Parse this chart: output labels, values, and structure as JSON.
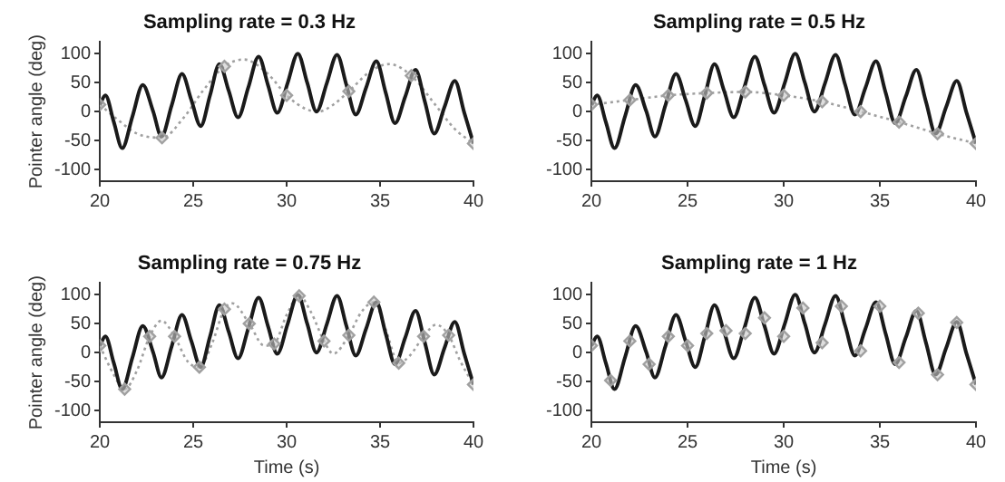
{
  "chart_data": [
    {
      "type": "line",
      "title": "Sampling rate = 0.3 Hz",
      "ylabel": "Pointer angle (deg)",
      "xlim": [
        20,
        40
      ],
      "xticks": [
        20,
        25,
        30,
        35,
        40
      ],
      "ylim": [
        -120,
        120
      ],
      "yticks": [
        -100,
        -50,
        0,
        50,
        100
      ],
      "grid": false,
      "legend": false,
      "series": [
        {
          "type": "line",
          "color": "#1a1a1a",
          "line_style": "solid",
          "marker": "none",
          "x": [
            20,
            20.3,
            20.75,
            21.2,
            21.75,
            22.3,
            22.85,
            23.3,
            23.85,
            24.4,
            24.9,
            25.4,
            25.9,
            26.4,
            26.9,
            27.4,
            27.95,
            28.5,
            29,
            29.5,
            30.05,
            30.6,
            31.1,
            31.6,
            32.15,
            32.7,
            33.2,
            33.7,
            34.25,
            34.8,
            35.3,
            35.8,
            36.35,
            36.9,
            37.4,
            37.9,
            38.45,
            39,
            39.5,
            40
          ],
          "values": [
            12,
            28,
            -18,
            -63,
            -8,
            46,
            1,
            -43,
            11,
            65,
            20,
            -25,
            28,
            82,
            36,
            -10,
            42,
            95,
            46,
            -2,
            49,
            100,
            50,
            0,
            49,
            98,
            46,
            -5,
            41,
            87,
            33,
            -20,
            26,
            72,
            17,
            -38,
            8,
            53,
            -1,
            -55
          ]
        },
        {
          "type": "line",
          "color": "#a0a0a0",
          "line_style": "dotted",
          "marker": "none",
          "x": [
            20,
            21,
            22,
            23.33,
            24.5,
            25.5,
            26.67,
            27.7,
            29,
            30,
            31,
            31.7,
            32.5,
            33.33,
            34.5,
            35.5,
            36.67,
            38,
            39,
            40
          ],
          "values": [
            12,
            -15,
            -38,
            -45,
            -10,
            35,
            78,
            90,
            65,
            28,
            5,
            0,
            12,
            35,
            70,
            82,
            62,
            10,
            -30,
            -55
          ]
        },
        {
          "type": "scatter",
          "color": "#a0a0a0",
          "marker": "diamond",
          "x": [
            20,
            23.33,
            26.67,
            30,
            33.33,
            36.67,
            40
          ],
          "values": [
            12,
            -45,
            78,
            28,
            35,
            62,
            -55
          ]
        }
      ]
    },
    {
      "type": "line",
      "title": "Sampling rate = 0.5 Hz",
      "xlim": [
        20,
        40
      ],
      "xticks": [
        20,
        25,
        30,
        35,
        40
      ],
      "ylim": [
        -120,
        120
      ],
      "yticks": [
        -100,
        -50,
        0,
        50,
        100
      ],
      "grid": false,
      "legend": false,
      "series": [
        {
          "type": "line",
          "color": "#1a1a1a",
          "line_style": "solid",
          "marker": "none",
          "x": [
            20,
            20.3,
            20.75,
            21.2,
            21.75,
            22.3,
            22.85,
            23.3,
            23.85,
            24.4,
            24.9,
            25.4,
            25.9,
            26.4,
            26.9,
            27.4,
            27.95,
            28.5,
            29,
            29.5,
            30.05,
            30.6,
            31.1,
            31.6,
            32.15,
            32.7,
            33.2,
            33.7,
            34.25,
            34.8,
            35.3,
            35.8,
            36.35,
            36.9,
            37.4,
            37.9,
            38.45,
            39,
            39.5,
            40
          ],
          "values": [
            12,
            28,
            -18,
            -63,
            -8,
            46,
            1,
            -43,
            11,
            65,
            20,
            -25,
            28,
            82,
            36,
            -10,
            42,
            95,
            46,
            -2,
            49,
            100,
            50,
            0,
            49,
            98,
            46,
            -5,
            41,
            87,
            33,
            -20,
            26,
            72,
            17,
            -38,
            8,
            53,
            -1,
            -55
          ]
        },
        {
          "type": "line",
          "color": "#a0a0a0",
          "line_style": "dotted",
          "marker": "none",
          "x": [
            20,
            22,
            24,
            26,
            28,
            30,
            32,
            34,
            36,
            38,
            40
          ],
          "values": [
            12,
            20,
            28,
            32,
            34,
            28,
            17,
            0,
            -18,
            -38,
            -55
          ]
        },
        {
          "type": "scatter",
          "color": "#a0a0a0",
          "marker": "diamond",
          "x": [
            20,
            22,
            24,
            26,
            28,
            30,
            32,
            34,
            36,
            38,
            40
          ],
          "values": [
            12,
            20,
            28,
            32,
            34,
            28,
            17,
            0,
            -18,
            -38,
            -55
          ]
        }
      ]
    },
    {
      "type": "line",
      "title": "Sampling rate = 0.75 Hz",
      "xlabel": "Time (s)",
      "ylabel": "Pointer angle (deg)",
      "xlim": [
        20,
        40
      ],
      "xticks": [
        20,
        25,
        30,
        35,
        40
      ],
      "ylim": [
        -120,
        120
      ],
      "yticks": [
        -100,
        -50,
        0,
        50,
        100
      ],
      "grid": false,
      "legend": false,
      "series": [
        {
          "type": "line",
          "color": "#1a1a1a",
          "line_style": "solid",
          "marker": "none",
          "x": [
            20,
            20.3,
            20.75,
            21.2,
            21.75,
            22.3,
            22.85,
            23.3,
            23.85,
            24.4,
            24.9,
            25.4,
            25.9,
            26.4,
            26.9,
            27.4,
            27.95,
            28.5,
            29,
            29.5,
            30.05,
            30.6,
            31.1,
            31.6,
            32.15,
            32.7,
            33.2,
            33.7,
            34.25,
            34.8,
            35.3,
            35.8,
            36.35,
            36.9,
            37.4,
            37.9,
            38.45,
            39,
            39.5,
            40
          ],
          "values": [
            12,
            28,
            -18,
            -63,
            -8,
            46,
            1,
            -43,
            11,
            65,
            20,
            -25,
            28,
            82,
            36,
            -10,
            42,
            95,
            46,
            -2,
            49,
            100,
            50,
            0,
            49,
            98,
            46,
            -5,
            41,
            87,
            33,
            -20,
            26,
            72,
            17,
            -38,
            8,
            53,
            -1,
            -55
          ]
        },
        {
          "type": "line",
          "color": "#a0a0a0",
          "line_style": "dotted",
          "marker": "none",
          "x": [
            20,
            20.7,
            21.33,
            22,
            22.67,
            23.3,
            24,
            24.7,
            25.33,
            26,
            26.67,
            27.1,
            28,
            28.8,
            29.33,
            30,
            30.67,
            31.3,
            32,
            32.5,
            33.33,
            34,
            34.67,
            35.3,
            36,
            36.6,
            37.33,
            38,
            38.67,
            39.3,
            40
          ],
          "values": [
            12,
            -35,
            -63,
            -30,
            28,
            55,
            28,
            -15,
            -25,
            15,
            75,
            85,
            50,
            12,
            15,
            65,
            98,
            70,
            20,
            -2,
            30,
            70,
            87,
            40,
            -18,
            -5,
            28,
            48,
            30,
            -15,
            -55
          ]
        },
        {
          "type": "scatter",
          "color": "#a0a0a0",
          "marker": "diamond",
          "x": [
            20,
            21.33,
            22.67,
            24,
            25.33,
            26.67,
            28,
            29.33,
            30.67,
            32,
            33.33,
            34.67,
            36,
            37.33,
            38.67,
            40
          ],
          "values": [
            12,
            -63,
            28,
            28,
            -25,
            75,
            50,
            15,
            98,
            20,
            30,
            87,
            -18,
            28,
            30,
            -55
          ]
        }
      ]
    },
    {
      "type": "line",
      "title": "Sampling rate = 1 Hz",
      "xlabel": "Time (s)",
      "xlim": [
        20,
        40
      ],
      "xticks": [
        20,
        25,
        30,
        35,
        40
      ],
      "ylim": [
        -120,
        120
      ],
      "yticks": [
        -100,
        -50,
        0,
        50,
        100
      ],
      "grid": false,
      "legend": false,
      "series": [
        {
          "type": "line",
          "color": "#1a1a1a",
          "line_style": "solid",
          "marker": "none",
          "x": [
            20,
            20.3,
            20.75,
            21.2,
            21.75,
            22.3,
            22.85,
            23.3,
            23.85,
            24.4,
            24.9,
            25.4,
            25.9,
            26.4,
            26.9,
            27.4,
            27.95,
            28.5,
            29,
            29.5,
            30.05,
            30.6,
            31.1,
            31.6,
            32.15,
            32.7,
            33.2,
            33.7,
            34.25,
            34.8,
            35.3,
            35.8,
            36.35,
            36.9,
            37.4,
            37.9,
            38.45,
            39,
            39.5,
            40
          ],
          "values": [
            12,
            28,
            -18,
            -63,
            -8,
            46,
            1,
            -43,
            11,
            65,
            20,
            -25,
            28,
            82,
            36,
            -10,
            42,
            95,
            46,
            -2,
            49,
            100,
            50,
            0,
            49,
            98,
            46,
            -5,
            41,
            87,
            33,
            -20,
            26,
            72,
            17,
            -38,
            8,
            53,
            -1,
            -55
          ]
        },
        {
          "type": "scatter",
          "color": "#a0a0a0",
          "marker": "diamond",
          "x": [
            20,
            21,
            22,
            23,
            24,
            25,
            26,
            27,
            28,
            29,
            30,
            31,
            32,
            33,
            34,
            35,
            36,
            37,
            38,
            39,
            40
          ],
          "values": [
            12,
            -48,
            20,
            -20,
            28,
            12,
            33,
            38,
            33,
            60,
            28,
            77,
            17,
            80,
            3,
            80,
            -17,
            68,
            -38,
            52,
            -55
          ]
        }
      ]
    }
  ]
}
